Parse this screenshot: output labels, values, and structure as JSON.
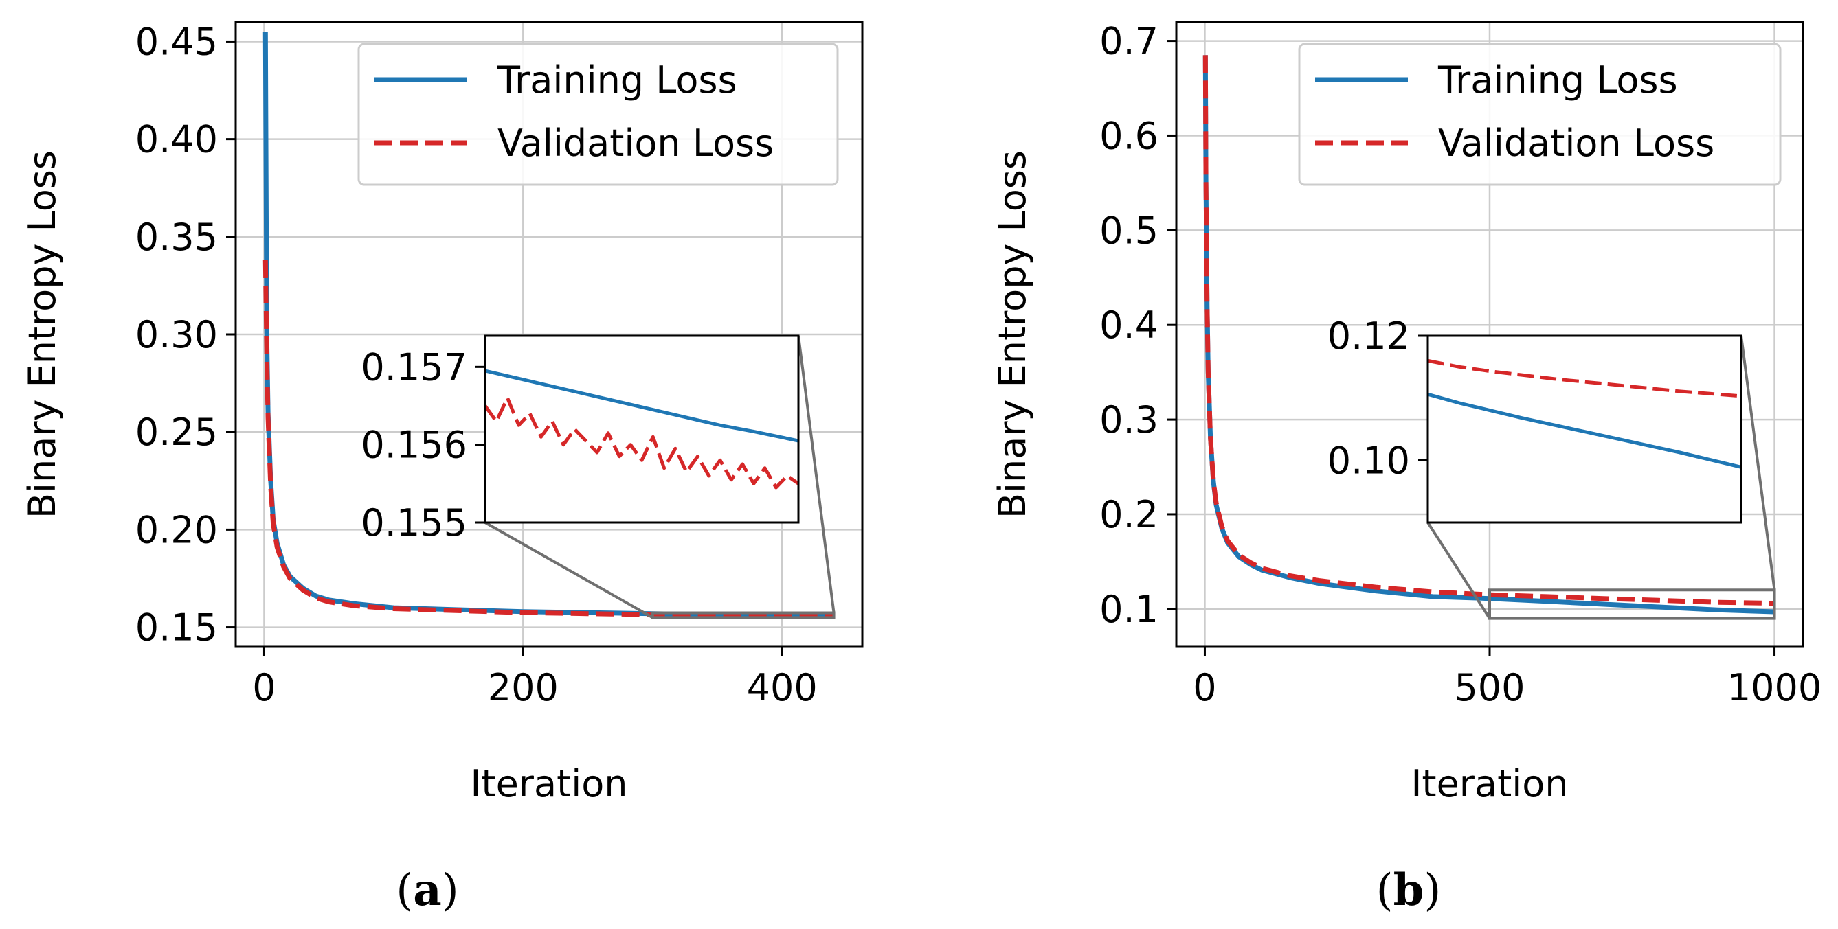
{
  "chart_data": [
    {
      "panel_label": "a",
      "type": "line",
      "xlabel": "Iteration",
      "ylabel": "Binary Entropy Loss",
      "xlim": [
        -22,
        462
      ],
      "ylim": [
        0.14,
        0.46
      ],
      "xticks": [
        0,
        200,
        400
      ],
      "xtick_labels": [
        "0",
        "200",
        "400"
      ],
      "yticks": [
        0.15,
        0.2,
        0.25,
        0.3,
        0.35,
        0.4,
        0.45
      ],
      "ytick_labels": [
        "0.15",
        "0.20",
        "0.25",
        "0.30",
        "0.35",
        "0.40",
        "0.45"
      ],
      "grid": true,
      "legend": "top-right",
      "series": [
        {
          "name": "Training Loss",
          "color": "#1f77b4",
          "style": "solid",
          "x": [
            1,
            2,
            3,
            5,
            7,
            10,
            15,
            20,
            30,
            40,
            50,
            70,
            100,
            150,
            200,
            250,
            300,
            350,
            400,
            440
          ],
          "y": [
            0.455,
            0.3,
            0.26,
            0.225,
            0.205,
            0.193,
            0.182,
            0.176,
            0.17,
            0.166,
            0.164,
            0.162,
            0.16,
            0.159,
            0.158,
            0.1575,
            0.157,
            0.1565,
            0.1562,
            0.156
          ]
        },
        {
          "name": "Validation Loss",
          "color": "#d62728",
          "style": "dashed",
          "x": [
            1,
            2,
            3,
            5,
            7,
            10,
            15,
            20,
            30,
            40,
            50,
            70,
            100,
            150,
            200,
            250,
            300,
            350,
            400,
            440
          ],
          "y": [
            0.338,
            0.29,
            0.257,
            0.222,
            0.203,
            0.191,
            0.181,
            0.175,
            0.169,
            0.165,
            0.163,
            0.161,
            0.1595,
            0.1585,
            0.1575,
            0.157,
            0.1565,
            0.1562,
            0.1558,
            0.1555
          ]
        }
      ],
      "inset": {
        "xlim": [
          300,
          440
        ],
        "ylim": [
          0.155,
          0.1574
        ],
        "yticks": [
          0.155,
          0.156,
          0.157
        ],
        "ytick_labels": [
          "0.155",
          "0.156",
          "0.157"
        ],
        "series": [
          {
            "name": "Training Loss",
            "x": [
              300,
              315,
              330,
              345,
              360,
              375,
              390,
              405,
              420,
              440
            ],
            "y": [
              0.15695,
              0.15685,
              0.15675,
              0.15665,
              0.15655,
              0.15645,
              0.15635,
              0.15625,
              0.15617,
              0.15605
            ]
          },
          {
            "name": "Validation Loss",
            "x": [
              300,
              305,
              310,
              315,
              320,
              325,
              330,
              335,
              340,
              345,
              350,
              355,
              360,
              365,
              370,
              375,
              380,
              385,
              390,
              395,
              400,
              405,
              410,
              415,
              420,
              425,
              430,
              435,
              440
            ],
            "y": [
              0.1565,
              0.1563,
              0.1566,
              0.15625,
              0.1564,
              0.1561,
              0.1563,
              0.156,
              0.1562,
              0.15605,
              0.1559,
              0.15615,
              0.15585,
              0.156,
              0.1558,
              0.1561,
              0.1557,
              0.15595,
              0.15565,
              0.15585,
              0.1556,
              0.1558,
              0.15555,
              0.15575,
              0.1555,
              0.1557,
              0.15545,
              0.1556,
              0.1555
            ]
          }
        ]
      }
    },
    {
      "panel_label": "b",
      "type": "line",
      "xlabel": "Iteration",
      "ylabel": "Binary Entropy Loss",
      "xlim": [
        -50,
        1050
      ],
      "ylim": [
        0.06,
        0.72
      ],
      "xticks": [
        0,
        500,
        1000
      ],
      "xtick_labels": [
        "0",
        "500",
        "1000"
      ],
      "yticks": [
        0.1,
        0.2,
        0.3,
        0.4,
        0.5,
        0.6,
        0.7
      ],
      "ytick_labels": [
        "0.1",
        "0.2",
        "0.3",
        "0.4",
        "0.5",
        "0.6",
        "0.7"
      ],
      "grid": true,
      "legend": "top-right",
      "series": [
        {
          "name": "Training Loss",
          "color": "#1f77b4",
          "style": "solid",
          "x": [
            1,
            2,
            4,
            6,
            10,
            15,
            20,
            30,
            40,
            60,
            80,
            100,
            150,
            200,
            300,
            400,
            500,
            600,
            700,
            800,
            900,
            1000
          ],
          "y": [
            0.685,
            0.55,
            0.42,
            0.35,
            0.28,
            0.235,
            0.21,
            0.185,
            0.17,
            0.155,
            0.147,
            0.141,
            0.133,
            0.127,
            0.119,
            0.113,
            0.111,
            0.108,
            0.105,
            0.102,
            0.099,
            0.097
          ]
        },
        {
          "name": "Validation Loss",
          "color": "#d62728",
          "style": "dashed",
          "x": [
            1,
            2,
            4,
            6,
            10,
            15,
            20,
            30,
            40,
            60,
            80,
            100,
            150,
            200,
            300,
            400,
            500,
            600,
            700,
            800,
            900,
            1000
          ],
          "y": [
            0.685,
            0.55,
            0.42,
            0.35,
            0.28,
            0.236,
            0.212,
            0.187,
            0.172,
            0.157,
            0.149,
            0.143,
            0.135,
            0.13,
            0.123,
            0.118,
            0.115,
            0.113,
            0.111,
            0.109,
            0.107,
            0.106
          ]
        }
      ],
      "inset": {
        "xlim": [
          500,
          1000
        ],
        "ylim": [
          0.09,
          0.12
        ],
        "yticks": [
          0.1,
          0.12
        ],
        "ytick_labels": [
          "0.10",
          "0.12"
        ],
        "series": [
          {
            "name": "Training Loss",
            "x": [
              500,
              550,
              600,
              650,
              700,
              750,
              800,
              850,
              900,
              950,
              1000
            ],
            "y": [
              0.1106,
              0.1092,
              0.108,
              0.1068,
              0.1057,
              0.1046,
              0.1035,
              0.1024,
              0.1013,
              0.1001,
              0.0989
            ]
          },
          {
            "name": "Validation Loss",
            "x": [
              500,
              550,
              600,
              650,
              700,
              750,
              800,
              850,
              900,
              950,
              1000
            ],
            "y": [
              0.116,
              0.115,
              0.1143,
              0.1137,
              0.1131,
              0.1126,
              0.1121,
              0.1116,
              0.1111,
              0.1107,
              0.1103
            ]
          }
        ]
      }
    }
  ]
}
